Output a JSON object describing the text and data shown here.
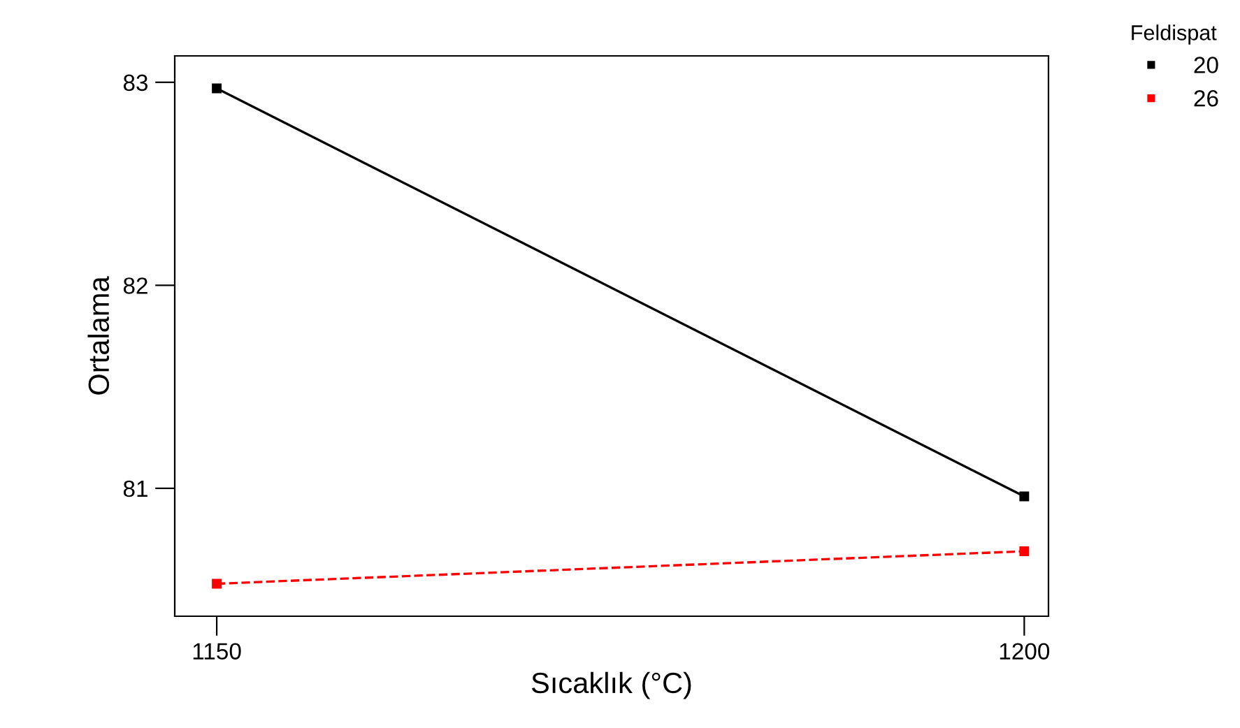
{
  "chart_data": {
    "type": "line",
    "xlabel": "Sıcaklık (°C)",
    "ylabel": "Ortalama",
    "legend_title": "Feldispat",
    "x": [
      1150,
      1200
    ],
    "series": [
      {
        "name": "20",
        "color": "#000000",
        "values": [
          82.97,
          80.96
        ],
        "line_style": "solid"
      },
      {
        "name": "26",
        "color": "#ff0000",
        "values": [
          80.53,
          80.69
        ],
        "line_style": "dashed"
      }
    ],
    "marker": "square",
    "xlim": [
      1147.4,
      1201.5
    ],
    "ylim": [
      80.37,
      83.13
    ],
    "xticks": [
      1150,
      1200
    ],
    "yticks": [
      81,
      82,
      83
    ],
    "grid": false,
    "legend": "top right"
  }
}
